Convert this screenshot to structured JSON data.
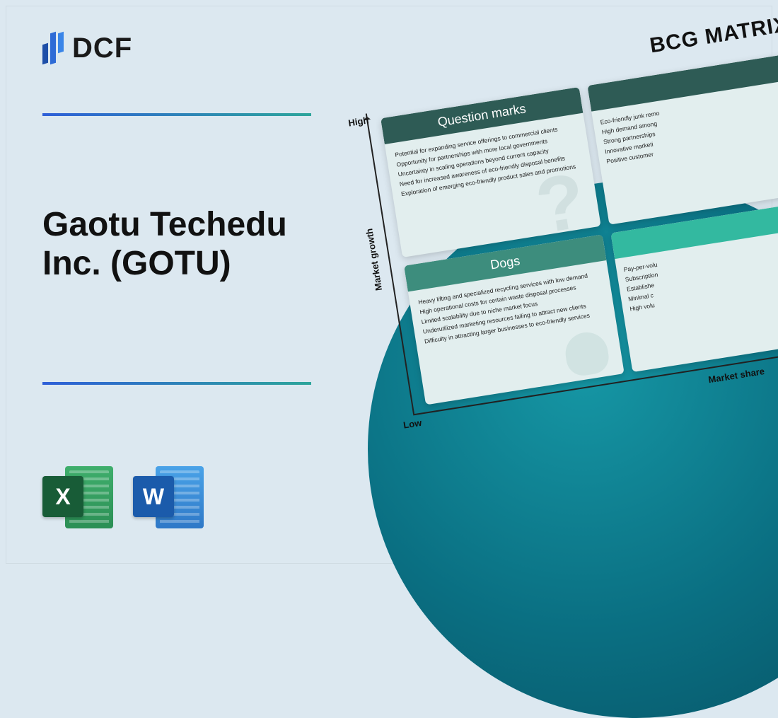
{
  "logo": {
    "text": "DCF"
  },
  "title": "Gaotu Techedu Inc. (GOTU)",
  "apps": {
    "excel": "X",
    "word": "W"
  },
  "matrix": {
    "title": "BCG MATRIX",
    "axis": {
      "y": "Market growth",
      "x": "Market share",
      "high": "High",
      "low": "Low"
    },
    "cards": {
      "questionMarks": {
        "title": "Question marks",
        "items": [
          "Potential for expanding service offerings to commercial clients",
          "Opportunity for partnerships with more local governments",
          "Uncertainty in scaling operations beyond current capacity",
          "Need for increased awareness of eco-friendly disposal benefits",
          "Exploration of emerging eco-friendly product sales and promotions"
        ]
      },
      "stars": {
        "items": [
          "Eco-friendly junk remo",
          "High demand among",
          "Strong partnerships",
          "Innovative marketi",
          "Positive customer"
        ]
      },
      "dogs": {
        "title": "Dogs",
        "items": [
          "Heavy lifting and specialized recycling services with low demand",
          "High operational costs for certain waste disposal processes",
          "Limited scalability due to niche market focus",
          "Underutilized marketing resources failing to attract new clients",
          "Difficulty in attracting larger businesses to eco-friendly services"
        ]
      },
      "cashCows": {
        "items": [
          "Pay-per-volu",
          "Subscription",
          "Establishe",
          "Minimal c",
          "High volu"
        ]
      }
    }
  },
  "colors": {
    "bg": "#dce8f0",
    "accentBlue": "#2e6bd6",
    "accentTeal": "#2da59b",
    "circle": "#0a6f82",
    "cardDarkHead": "#2e5b55",
    "cardMidHead": "#3d8d7d",
    "cardLightHead": "#33b9a0",
    "cardBody": "#e2eeee"
  }
}
